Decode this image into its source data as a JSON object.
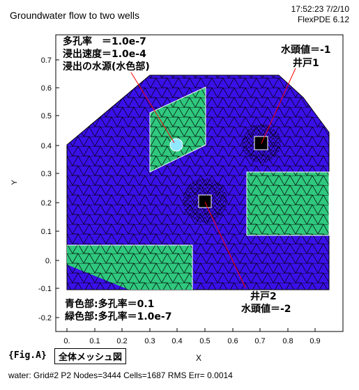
{
  "header": {
    "title": "Groundwater flow to two wells",
    "timestamp": "17:52:23 7/2/10",
    "software": "FlexPDE 6.12"
  },
  "axes": {
    "xlabel": "X",
    "ylabel": "Y",
    "x_ticks": [
      "0.",
      "0.1",
      "0.2",
      "0.3",
      "0.4",
      "0.5",
      "0.6",
      "0.7",
      "0.8",
      "0.9"
    ],
    "y_ticks": [
      "0.7",
      "0.6",
      "0.5",
      "0.4",
      "0.3",
      "0.2",
      "0.1",
      "0.",
      "-0.1",
      "-0.2"
    ]
  },
  "annotations": {
    "top_left": [
      "多孔率　＝1.0e-7",
      "浸出速度＝1.0e-4",
      "浸出の水源(水色部)"
    ],
    "well1": [
      "水頭値＝-1",
      "井戸1"
    ],
    "well2": [
      "井戸2",
      "水頭値＝-2"
    ],
    "bottom_left": [
      "青色部:多孔率＝0.1",
      "緑色部:多孔率＝1.0e-7"
    ]
  },
  "footer": {
    "fig_label": "{Fig.A}",
    "fig_caption": "全体メッシュ図",
    "status": "water:  Grid#2  P2  Nodes=3444 Cells=1687 RMS Err= 0.0014"
  },
  "colors": {
    "blue_region": "#3a10e8",
    "green_region": "#2fc87e",
    "source_region": "#8fe8ff",
    "mesh_line": "#000000",
    "pointer": "#ff0000"
  }
}
